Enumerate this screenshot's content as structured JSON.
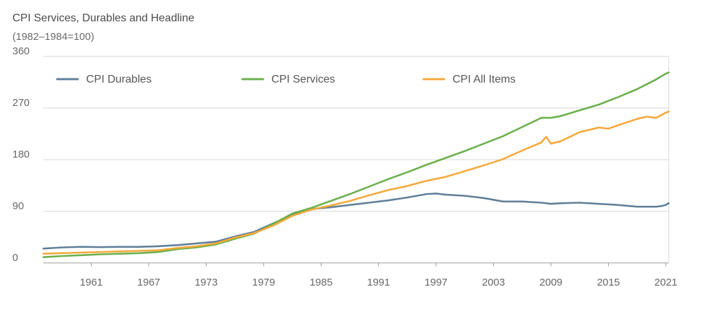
{
  "chart_data": {
    "type": "line",
    "title": "CPI Services, Durables and Headline",
    "subtitle": "(1982–1984=100)",
    "xlabel": "",
    "ylabel": "",
    "xlim": [
      1956,
      2021.3
    ],
    "ylim": [
      0,
      360
    ],
    "y_ticks": [
      0,
      90,
      180,
      270,
      360
    ],
    "x_ticks": [
      1961,
      1967,
      1973,
      1979,
      1985,
      1991,
      1997,
      2003,
      2009,
      2015,
      2021
    ],
    "grid": true,
    "legend_position": "top",
    "series": [
      {
        "name": "CPI Durables",
        "color": "#5f7f99",
        "x": [
          1956,
          1958,
          1960,
          1962,
          1964,
          1966,
          1968,
          1970,
          1972,
          1974,
          1976,
          1978,
          1980,
          1982,
          1984,
          1986,
          1988,
          1990,
          1992,
          1994,
          1996,
          1997,
          1998,
          2000,
          2002,
          2004,
          2006,
          2008,
          2009,
          2010,
          2012,
          2014,
          2016,
          2018,
          2019,
          2020,
          2020.5,
          2021,
          2021.3
        ],
        "y": [
          25,
          27,
          28,
          27.5,
          28,
          28,
          29,
          31,
          34,
          37,
          46,
          54,
          69,
          84,
          94,
          97,
          101,
          105,
          109,
          114,
          120,
          121,
          119,
          117,
          113,
          107,
          107,
          105,
          103,
          104,
          105,
          103,
          101,
          98,
          98,
          98,
          99,
          101,
          104
        ]
      },
      {
        "name": "CPI Services",
        "color": "#6ab04c",
        "x": [
          1956,
          1958,
          1960,
          1962,
          1964,
          1966,
          1968,
          1970,
          1972,
          1974,
          1976,
          1978,
          1980,
          1982,
          1984,
          1986,
          1988,
          1990,
          1992,
          1994,
          1996,
          1998,
          2000,
          2002,
          2004,
          2006,
          2008,
          2009,
          2010,
          2012,
          2014,
          2016,
          2018,
          2020,
          2021,
          2021.3
        ],
        "y": [
          10,
          12,
          13.5,
          15,
          16,
          17,
          19,
          24,
          27,
          32,
          42,
          51,
          68,
          86,
          96,
          108,
          120,
          133,
          146,
          158,
          171,
          183,
          195,
          208,
          221,
          237,
          253,
          253,
          256,
          266,
          276,
          289,
          303,
          320,
          330,
          332
        ]
      },
      {
        "name": "CPI All Items",
        "color": "#f4a93a",
        "x": [
          1956,
          1958,
          1960,
          1962,
          1964,
          1966,
          1968,
          1970,
          1972,
          1974,
          1976,
          1978,
          1980,
          1982,
          1984,
          1986,
          1988,
          1990,
          1992,
          1994,
          1996,
          1998,
          2000,
          2002,
          2004,
          2006,
          2008,
          2008.5,
          2009,
          2010,
          2012,
          2014,
          2015,
          2016,
          2018,
          2019,
          2020,
          2021,
          2021.3
        ],
        "y": [
          16,
          17,
          18,
          19,
          20,
          21,
          22,
          26,
          29,
          34,
          44,
          52,
          65,
          82,
          93,
          100,
          108,
          118,
          127,
          134,
          143,
          150,
          160,
          170,
          181,
          196,
          210,
          220,
          208,
          212,
          228,
          236,
          234,
          240,
          251,
          255,
          253,
          262,
          264
        ]
      }
    ]
  }
}
